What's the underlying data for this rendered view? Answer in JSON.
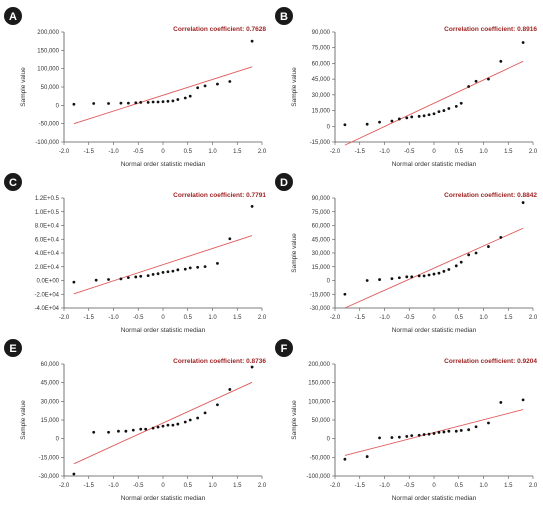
{
  "style": {
    "point_color": "#111111",
    "line_color": "#e05a5a",
    "corr_color": "#9c1f1f",
    "badge_color": "#1a1a1a",
    "axis_color": "#555555"
  },
  "chart_data": [
    {
      "panel": "A",
      "type": "scatter",
      "title": "Correlation coefficient: 0.7628",
      "xlabel": "Normal order statistic median",
      "ylabel": "Sample value",
      "xlim": [
        -2.0,
        2.0
      ],
      "ylim": [
        -100000,
        200000
      ],
      "xticks": [
        "-2.0",
        "-1.5",
        "-1.0",
        "-0.5",
        "0",
        "0.5",
        "1.0",
        "1.5",
        "2.0"
      ],
      "yticks": [
        "200,000",
        "150,000",
        "100,000",
        "50,000",
        "0",
        "-50,000",
        "-100,000"
      ],
      "fit_line": {
        "x": [
          -1.8,
          1.8
        ],
        "y": [
          -50000,
          105000
        ]
      },
      "x": [
        -1.8,
        -1.4,
        -1.1,
        -0.85,
        -0.7,
        -0.55,
        -0.45,
        -0.3,
        -0.2,
        -0.1,
        0,
        0.1,
        0.2,
        0.3,
        0.45,
        0.55,
        0.7,
        0.85,
        1.1,
        1.35,
        1.8
      ],
      "y": [
        3000,
        5000,
        5000,
        6000,
        6000,
        7000,
        8000,
        8000,
        9000,
        9000,
        10000,
        11000,
        12000,
        16000,
        20000,
        25000,
        48000,
        53000,
        58000,
        65000,
        175000
      ]
    },
    {
      "panel": "B",
      "type": "scatter",
      "title": "Correlation coefficient: 0.8916",
      "xlabel": "Normal order statistic median",
      "ylabel": "Sample value",
      "xlim": [
        -2.0,
        2.0
      ],
      "ylim": [
        -15000,
        90000
      ],
      "xticks": [
        "-2.0",
        "-1.5",
        "-1.0",
        "-0.5",
        "0",
        "0.5",
        "1.0",
        "1.5",
        "2.0"
      ],
      "yticks": [
        "90,000",
        "75,000",
        "60,000",
        "45,000",
        "30,000",
        "15,000",
        "0",
        "-15,000"
      ],
      "fit_line": {
        "x": [
          -1.8,
          1.8
        ],
        "y": [
          -18000,
          62000
        ]
      },
      "x": [
        -1.8,
        -1.35,
        -1.1,
        -0.85,
        -0.7,
        -0.55,
        -0.45,
        -0.3,
        -0.2,
        -0.1,
        0,
        0.1,
        0.2,
        0.3,
        0.45,
        0.55,
        0.7,
        0.85,
        1.1,
        1.35,
        1.8
      ],
      "y": [
        1500,
        2000,
        4000,
        5000,
        7000,
        8000,
        9000,
        9500,
        10000,
        11000,
        12000,
        14000,
        15000,
        17000,
        19000,
        22000,
        38000,
        43000,
        45000,
        62000,
        80000
      ]
    },
    {
      "panel": "C",
      "type": "scatter",
      "title": "Correlation coefficient: 0.7791",
      "xlabel": "Normal order statistic median",
      "ylabel": "",
      "xlim": [
        -2.0,
        2.0
      ],
      "ylim": [
        -40000,
        130000
      ],
      "xticks": [
        "-2.0",
        "-1.5",
        "-1.0",
        "-0.5",
        "0",
        "0.5",
        "1.0",
        "1.5",
        "2.0"
      ],
      "yticks": [
        "1.2E+0.5",
        "1.0E+0.5",
        "8.0E+0.4",
        "6.0E+0.4",
        "4.0E+0.4",
        "2.0E+0.4",
        "0.0E+00",
        "-2.0E+04",
        "-4.0E+04"
      ],
      "fit_line": {
        "x": [
          -1.8,
          1.8
        ],
        "y": [
          -18000,
          72000
        ]
      },
      "x": [
        -1.8,
        -1.35,
        -1.1,
        -0.85,
        -0.7,
        -0.55,
        -0.45,
        -0.3,
        -0.2,
        -0.1,
        0,
        0.1,
        0.2,
        0.3,
        0.45,
        0.55,
        0.7,
        0.85,
        1.1,
        1.35,
        1.8
      ],
      "y": [
        0,
        3000,
        4000,
        5000,
        7000,
        8000,
        9000,
        10000,
        12000,
        13000,
        15000,
        16000,
        17000,
        19000,
        20000,
        22000,
        23000,
        24000,
        29000,
        67000,
        117000
      ]
    },
    {
      "panel": "D",
      "type": "scatter",
      "title": "Correlation coefficient: 0.8842",
      "xlabel": "Normal order statistic median",
      "ylabel": "Sample value",
      "xlim": [
        -2.0,
        2.0
      ],
      "ylim": [
        -30000,
        90000
      ],
      "xticks": [
        "-2.0",
        "-1.5",
        "-1.0",
        "-0.5",
        "0",
        "0.5",
        "1.0",
        "1.5",
        "2.0"
      ],
      "yticks": [
        "90,000",
        "75,000",
        "60,000",
        "45,000",
        "30,000",
        "15,000",
        "0",
        "-15,000",
        "-30,000"
      ],
      "fit_line": {
        "x": [
          -1.8,
          1.8
        ],
        "y": [
          -30000,
          57000
        ]
      },
      "x": [
        -1.8,
        -1.35,
        -1.1,
        -0.85,
        -0.7,
        -0.55,
        -0.45,
        -0.3,
        -0.2,
        -0.1,
        0,
        0.1,
        0.2,
        0.3,
        0.45,
        0.55,
        0.7,
        0.85,
        1.1,
        1.35,
        1.8
      ],
      "y": [
        -15000,
        0,
        1000,
        2000,
        3000,
        4000,
        4000,
        5000,
        5000,
        6000,
        7000,
        8000,
        10000,
        12000,
        16000,
        20000,
        28000,
        30000,
        37000,
        47000,
        85000
      ]
    },
    {
      "panel": "E",
      "type": "scatter",
      "title": "Correlation coefficient: 0.8736",
      "xlabel": "Normal order statistic median",
      "ylabel": "Sample value",
      "xlim": [
        -2.0,
        2.0
      ],
      "ylim": [
        -40000,
        70000
      ],
      "xticks": [
        "-2.0",
        "-1.5",
        "-1.0",
        "-0.5",
        "0",
        "0.5",
        "1.0",
        "1.5",
        "2.0"
      ],
      "yticks": [
        "60,000",
        "45,000",
        "30,000",
        "15,000",
        "0",
        "-15,000",
        "-30,000"
      ],
      "fit_line": {
        "x": [
          -1.8,
          1.8
        ],
        "y": [
          -28000,
          52000
        ]
      },
      "x": [
        -1.8,
        -1.4,
        -1.1,
        -0.9,
        -0.75,
        -0.6,
        -0.45,
        -0.35,
        -0.2,
        -0.1,
        0,
        0.1,
        0.2,
        0.3,
        0.45,
        0.55,
        0.7,
        0.85,
        1.1,
        1.35,
        1.8
      ],
      "y": [
        -38000,
        3000,
        3000,
        4000,
        4000,
        5000,
        6000,
        6000,
        7000,
        8000,
        9000,
        10000,
        10000,
        11000,
        13000,
        15000,
        17000,
        22000,
        30000,
        45000,
        67000
      ]
    },
    {
      "panel": "F",
      "type": "scatter",
      "title": "Correlation coefficient: 0.9204",
      "xlabel": "Normal order statistic median",
      "ylabel": "Sample value",
      "xlim": [
        -2.0,
        2.0
      ],
      "ylim": [
        -100000,
        200000
      ],
      "xticks": [
        "-2.0",
        "-1.5",
        "-1.0",
        "-0.5",
        "0",
        "0.5",
        "1.0",
        "1.5",
        "2.0"
      ],
      "yticks": [
        "200,000",
        "150,000",
        "100,000",
        "50,000",
        "0",
        "-50,000",
        "-100,000"
      ],
      "fit_line": {
        "x": [
          -1.8,
          1.8
        ],
        "y": [
          -45000,
          78000
        ]
      },
      "x": [
        -1.8,
        -1.35,
        -1.1,
        -0.85,
        -0.7,
        -0.55,
        -0.45,
        -0.3,
        -0.2,
        -0.1,
        0,
        0.1,
        0.2,
        0.3,
        0.45,
        0.55,
        0.7,
        0.85,
        1.1,
        1.35,
        1.8
      ],
      "y": [
        -55000,
        -48000,
        2000,
        3000,
        4000,
        6000,
        8000,
        9000,
        11000,
        12000,
        14000,
        17000,
        18000,
        20000,
        20000,
        22000,
        24000,
        32000,
        42000,
        97000,
        104000
      ]
    }
  ]
}
